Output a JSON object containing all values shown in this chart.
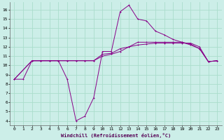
{
  "xlabel": "Windchill (Refroidissement éolien,°C)",
  "background_color": "#cceee8",
  "grid_color": "#aaddcc",
  "line_color": "#880088",
  "x_ticks": [
    0,
    1,
    2,
    3,
    4,
    5,
    6,
    7,
    8,
    9,
    10,
    11,
    12,
    13,
    14,
    15,
    16,
    17,
    18,
    19,
    20,
    21,
    22,
    23
  ],
  "y_ticks": [
    4,
    5,
    6,
    7,
    8,
    9,
    10,
    11,
    12,
    13,
    14,
    15,
    16
  ],
  "ylim": [
    3.5,
    16.8
  ],
  "xlim": [
    -0.5,
    23.5
  ],
  "curve1_x": [
    0,
    1,
    2,
    3,
    4,
    5,
    6,
    7,
    8,
    9,
    10,
    11,
    12,
    13,
    14,
    15,
    16,
    17,
    18,
    19,
    20,
    21,
    22,
    23
  ],
  "curve1_y": [
    8.5,
    8.5,
    10.5,
    10.5,
    10.5,
    10.5,
    8.5,
    4.0,
    4.5,
    6.5,
    11.5,
    11.5,
    15.8,
    16.5,
    15.0,
    14.8,
    13.7,
    13.3,
    12.8,
    12.5,
    12.2,
    11.8,
    10.4,
    10.5
  ],
  "curve2_x": [
    0,
    2,
    3,
    4,
    5,
    6,
    7,
    8,
    9,
    10,
    11,
    12,
    13,
    14,
    15,
    16,
    17,
    18,
    19,
    20,
    21,
    22,
    23
  ],
  "curve2_y": [
    8.5,
    10.5,
    10.5,
    10.5,
    10.5,
    10.5,
    10.5,
    10.5,
    10.5,
    11.2,
    11.3,
    11.8,
    12.0,
    12.2,
    12.3,
    12.4,
    12.4,
    12.4,
    12.4,
    12.4,
    12.0,
    10.4,
    10.5
  ],
  "curve3_x": [
    0,
    2,
    3,
    4,
    5,
    6,
    7,
    8,
    9,
    10,
    11,
    12,
    13,
    14,
    15,
    16,
    17,
    18,
    19,
    20,
    21,
    22,
    23
  ],
  "curve3_y": [
    8.5,
    10.5,
    10.5,
    10.5,
    10.5,
    10.5,
    10.5,
    10.5,
    10.5,
    11.0,
    11.2,
    11.5,
    12.0,
    12.5,
    12.5,
    12.5,
    12.5,
    12.5,
    12.5,
    12.3,
    11.8,
    10.4,
    10.5
  ]
}
